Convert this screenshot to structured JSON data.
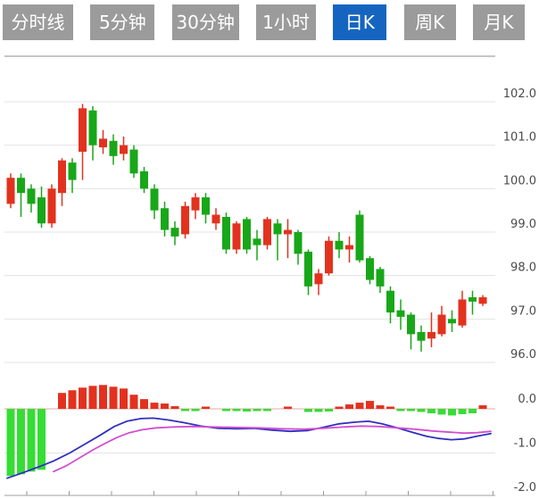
{
  "tabs": [
    {
      "label": "分时线",
      "active": false
    },
    {
      "label": "5分钟",
      "active": false
    },
    {
      "label": "30分钟",
      "active": false
    },
    {
      "label": "1小时",
      "active": false
    },
    {
      "label": "日K",
      "active": true
    },
    {
      "label": "周K",
      "active": false
    },
    {
      "label": "月K",
      "active": false
    }
  ],
  "colors": {
    "up": "#e2321f",
    "down": "#18a718",
    "macd_up": "#e2321f",
    "macd_down": "#35dd35",
    "dif_line": "#2f2fbf",
    "dea_line": "#d14fd1",
    "zero_line": "#eda4a4",
    "grid": "#e3e3e3",
    "border": "#b3b3b3",
    "axis_text": "#4a4a4a",
    "active_tab": "#1565c0",
    "tab": "#9b9b9b"
  },
  "chart_data": {
    "type": "candlestick",
    "title": "",
    "legend_position": "none",
    "grid": true,
    "price_panel": {
      "ylabels": [
        "102.0",
        "101.0",
        "100.0",
        "99.0",
        "98.0",
        "97.0",
        "96.0"
      ],
      "ymax": 102.0,
      "ymin": 96.0,
      "grid_step": 1.0,
      "up_color_meaning": "close >= open (red, rising)",
      "down_color_meaning": "close < open (green, falling)",
      "candles_ochl": [
        [
          99.65,
          100.25,
          100.35,
          99.55
        ],
        [
          100.25,
          99.9,
          100.35,
          99.35
        ],
        [
          100.0,
          99.65,
          100.1,
          99.45
        ],
        [
          99.8,
          99.2,
          100.05,
          99.1
        ],
        [
          99.2,
          100.0,
          100.1,
          99.1
        ],
        [
          99.9,
          100.65,
          100.7,
          99.6
        ],
        [
          100.6,
          100.2,
          100.7,
          99.9
        ],
        [
          100.85,
          101.85,
          101.95,
          100.2
        ],
        [
          101.8,
          101.0,
          101.9,
          100.65
        ],
        [
          100.95,
          101.15,
          101.35,
          100.8
        ],
        [
          101.1,
          100.75,
          101.25,
          100.55
        ],
        [
          100.8,
          101.0,
          101.2,
          100.65
        ],
        [
          100.9,
          100.35,
          101.0,
          100.25
        ],
        [
          100.4,
          100.0,
          100.5,
          99.9
        ],
        [
          100.0,
          99.5,
          100.1,
          99.3
        ],
        [
          99.55,
          99.05,
          99.7,
          98.9
        ],
        [
          99.1,
          98.9,
          99.25,
          98.7
        ],
        [
          98.95,
          99.6,
          99.7,
          98.85
        ],
        [
          99.5,
          99.8,
          99.9,
          99.3
        ],
        [
          99.8,
          99.4,
          99.9,
          99.2
        ],
        [
          99.2,
          99.4,
          99.55,
          99.05
        ],
        [
          99.35,
          98.6,
          99.45,
          98.5
        ],
        [
          98.6,
          99.2,
          99.25,
          98.5
        ],
        [
          99.3,
          98.6,
          99.35,
          98.5
        ],
        [
          98.85,
          98.7,
          99.05,
          98.35
        ],
        [
          98.7,
          99.3,
          99.35,
          98.6
        ],
        [
          99.2,
          98.95,
          99.3,
          98.35
        ],
        [
          98.95,
          99.05,
          99.3,
          98.4
        ],
        [
          99.0,
          98.5,
          99.05,
          98.25
        ],
        [
          98.55,
          97.75,
          98.6,
          97.55
        ],
        [
          97.8,
          98.05,
          98.15,
          97.55
        ],
        [
          98.05,
          98.8,
          98.9,
          98.0
        ],
        [
          98.8,
          98.6,
          99.0,
          98.4
        ],
        [
          98.6,
          98.7,
          98.9,
          98.3
        ],
        [
          99.4,
          98.35,
          99.5,
          98.3
        ],
        [
          98.4,
          97.9,
          98.45,
          97.8
        ],
        [
          98.15,
          97.75,
          98.2,
          97.6
        ],
        [
          97.65,
          97.15,
          97.75,
          96.9
        ],
        [
          97.2,
          97.05,
          97.45,
          96.75
        ],
        [
          97.1,
          96.65,
          97.15,
          96.3
        ],
        [
          96.7,
          96.5,
          96.85,
          96.25
        ],
        [
          96.55,
          96.7,
          97.15,
          96.35
        ],
        [
          96.65,
          97.1,
          97.3,
          96.6
        ],
        [
          97.0,
          96.9,
          97.2,
          96.7
        ],
        [
          96.85,
          97.45,
          97.65,
          96.8
        ],
        [
          97.5,
          97.4,
          97.65,
          97.1
        ],
        [
          97.35,
          97.5,
          97.55,
          97.3
        ]
      ]
    },
    "macd_panel": {
      "ylabels": [
        "0.0",
        "-1.0",
        "-2.0"
      ],
      "ymax": 0.2,
      "ymin": -2.0,
      "histogram": [
        -1.52,
        -1.48,
        -1.42,
        -1.38,
        0,
        0.36,
        0.42,
        0.48,
        0.52,
        0.54,
        0.5,
        0.46,
        0.32,
        0.22,
        0.14,
        0.12,
        0.06,
        -0.04,
        -0.04,
        0.02,
        0,
        -0.05,
        -0.05,
        -0.06,
        -0.05,
        -0.04,
        0,
        0.03,
        0,
        -0.07,
        -0.07,
        -0.06,
        0.05,
        0.1,
        0.14,
        0.18,
        0.08,
        0.04,
        -0.03,
        -0.05,
        -0.07,
        -0.1,
        -0.13,
        -0.15,
        -0.12,
        -0.1,
        0.08
      ],
      "series": [
        {
          "name": "DIF",
          "points": [
            [
              8,
              -1.57
            ],
            [
              25,
              -1.45
            ],
            [
              45,
              -1.3
            ],
            [
              60,
              -1.18
            ],
            [
              78,
              -1.0
            ],
            [
              95,
              -0.8
            ],
            [
              112,
              -0.6
            ],
            [
              128,
              -0.4
            ],
            [
              142,
              -0.28
            ],
            [
              158,
              -0.22
            ],
            [
              172,
              -0.21
            ],
            [
              188,
              -0.25
            ],
            [
              205,
              -0.31
            ],
            [
              225,
              -0.39
            ],
            [
              245,
              -0.44
            ],
            [
              265,
              -0.45
            ],
            [
              285,
              -0.44
            ],
            [
              305,
              -0.48
            ],
            [
              325,
              -0.51
            ],
            [
              345,
              -0.49
            ],
            [
              362,
              -0.42
            ],
            [
              380,
              -0.34
            ],
            [
              398,
              -0.3
            ],
            [
              413,
              -0.28
            ],
            [
              428,
              -0.34
            ],
            [
              445,
              -0.43
            ],
            [
              462,
              -0.53
            ],
            [
              478,
              -0.62
            ],
            [
              492,
              -0.67
            ],
            [
              506,
              -0.7
            ],
            [
              520,
              -0.68
            ],
            [
              534,
              -0.62
            ],
            [
              550,
              -0.56
            ]
          ]
        },
        {
          "name": "DEA",
          "points": [
            [
              60,
              -1.42
            ],
            [
              75,
              -1.28
            ],
            [
              90,
              -1.1
            ],
            [
              105,
              -0.92
            ],
            [
              120,
              -0.76
            ],
            [
              132,
              -0.64
            ],
            [
              145,
              -0.54
            ],
            [
              160,
              -0.47
            ],
            [
              175,
              -0.43
            ],
            [
              195,
              -0.41
            ],
            [
              215,
              -0.4
            ],
            [
              240,
              -0.41
            ],
            [
              265,
              -0.42
            ],
            [
              290,
              -0.43
            ],
            [
              315,
              -0.45
            ],
            [
              340,
              -0.46
            ],
            [
              362,
              -0.44
            ],
            [
              385,
              -0.41
            ],
            [
              405,
              -0.39
            ],
            [
              425,
              -0.4
            ],
            [
              445,
              -0.43
            ],
            [
              465,
              -0.46
            ],
            [
              485,
              -0.5
            ],
            [
              505,
              -0.53
            ],
            [
              520,
              -0.55
            ],
            [
              535,
              -0.54
            ],
            [
              550,
              -0.51
            ]
          ]
        }
      ]
    }
  }
}
